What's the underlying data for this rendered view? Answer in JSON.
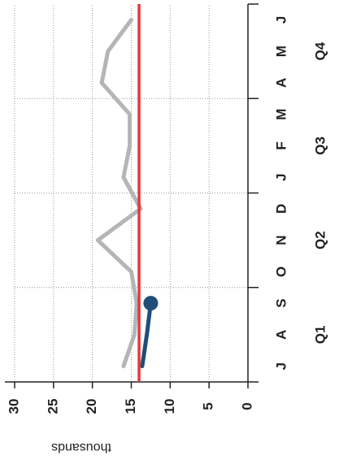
{
  "chart_data": {
    "type": "line",
    "y_label": "thousands",
    "categories": [
      "J",
      "A",
      "S",
      "O",
      "N",
      "D",
      "J",
      "F",
      "M",
      "A",
      "M",
      "J"
    ],
    "groups": [
      "Q1",
      "Q2",
      "Q3",
      "Q4"
    ],
    "series": [
      {
        "color": "#b5b5b5",
        "values": [
          16,
          14.6,
          14.3,
          15,
          19.3,
          13.8,
          16,
          15.2,
          15.2,
          18.8,
          18,
          15
        ]
      },
      {
        "color": "#1f4e79",
        "values": [
          13.6,
          13,
          12.5,
          null,
          null,
          null,
          null,
          null,
          null,
          null,
          null,
          null
        ]
      }
    ],
    "hline": {
      "value": 14,
      "color": "#e0393e"
    },
    "ylim": [
      0,
      30
    ],
    "yticks": [
      0,
      5,
      10,
      15,
      20,
      25,
      30
    ],
    "grid": true
  }
}
